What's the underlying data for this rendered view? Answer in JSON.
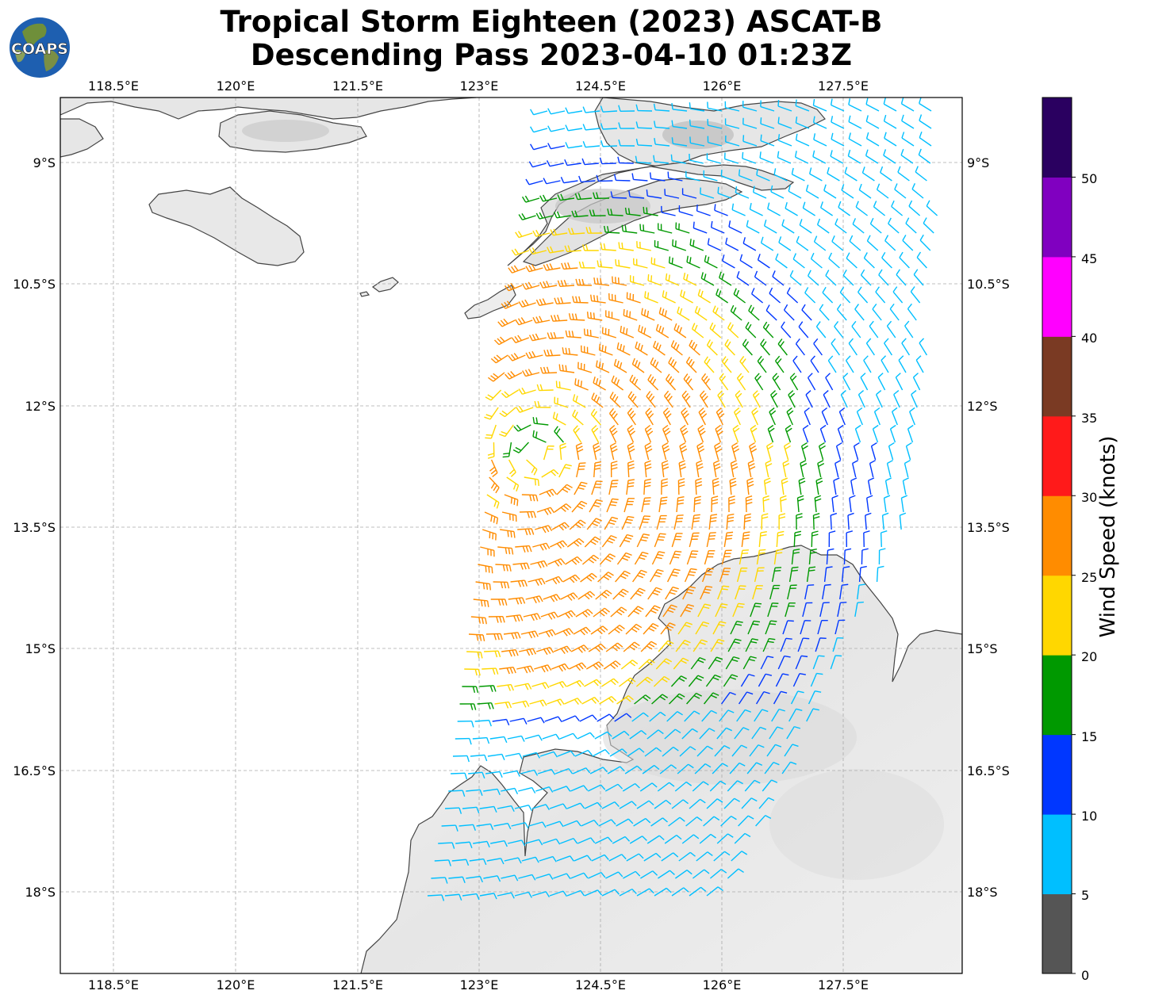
{
  "title": {
    "line1": "Tropical Storm Eighteen (2023) ASCAT-B",
    "line2": "Descending Pass 2023-04-10 01:23Z"
  },
  "logo": {
    "text": "COAPS",
    "icon": "globe-logo-icon"
  },
  "axes": {
    "lon_ticks": [
      "118.5°E",
      "120°E",
      "121.5°E",
      "123°E",
      "124.5°E",
      "126°E",
      "127.5°E"
    ],
    "lat_ticks": [
      "9°S",
      "10.5°S",
      "12°S",
      "13.5°S",
      "15°S",
      "16.5°S",
      "18°S"
    ],
    "lon_range": [
      117.85,
      128.95
    ],
    "lat_range": [
      -19.0,
      -8.2
    ],
    "grid": true
  },
  "colorbar": {
    "title": "Wind Speed (knots)",
    "ticks": [
      "0",
      "5",
      "10",
      "15",
      "20",
      "25",
      "30",
      "35",
      "40",
      "45",
      "50"
    ],
    "colors": [
      "#555555",
      "#00bfff",
      "#0037ff",
      "#009900",
      "#ffd700",
      "#ff8c00",
      "#ff1a1a",
      "#7a3a23",
      "#ff00ff",
      "#8000c0",
      "#2a0060"
    ]
  },
  "map": {
    "features": [
      "Sumba-island",
      "Flores-island",
      "Timor-island",
      "Rote-island",
      "Savu-island",
      "Kimberley-coast"
    ],
    "tropical_cyclone_center_lonlat": [
      123.7,
      -12.6
    ]
  }
}
